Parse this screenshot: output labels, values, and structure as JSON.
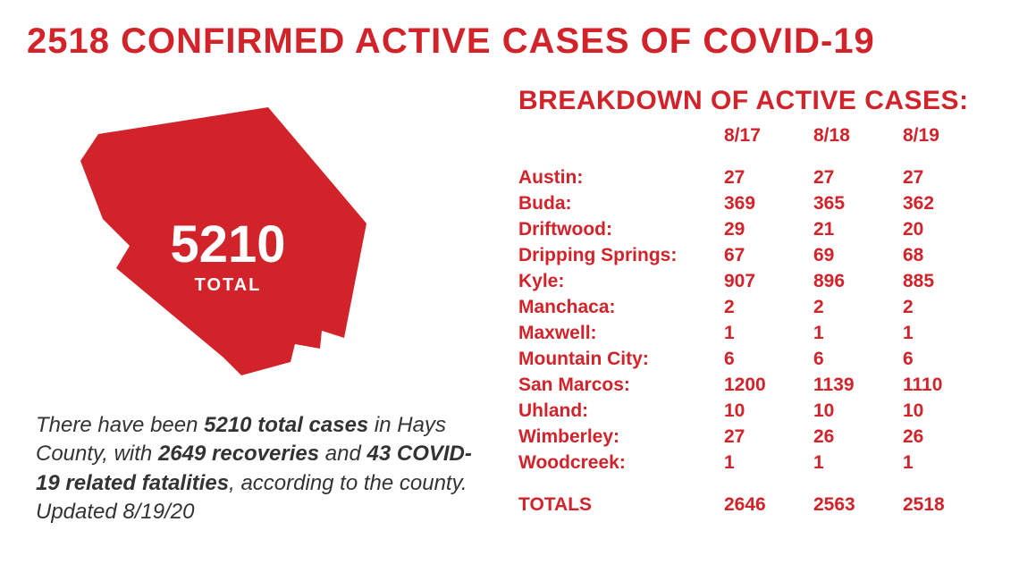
{
  "colors": {
    "red": "#d2232a",
    "text": "#333333",
    "bg": "#ffffff"
  },
  "headline": "2518 CONFIRMED ACTIVE CASES OF COVID-19",
  "map": {
    "number": "5210",
    "label": "TOTAL"
  },
  "summary": {
    "prefix": "There have been ",
    "b1": "5210 total cases",
    "mid1": " in Hays County, with ",
    "b2": "2649 recoveries",
    "mid2": " and ",
    "b3": "43 COVID-19 related fatalities",
    "suffix": ", according to the county. Updated 8/19/20"
  },
  "breakdown_title": "BREAKDOWN OF ACTIVE CASES:",
  "dates": [
    "8/17",
    "8/18",
    "8/19"
  ],
  "cities": [
    {
      "name": "Austin:",
      "v": [
        "27",
        "27",
        "27"
      ]
    },
    {
      "name": "Buda:",
      "v": [
        "369",
        "365",
        "362"
      ]
    },
    {
      "name": "Driftwood:",
      "v": [
        "29",
        "21",
        "20"
      ]
    },
    {
      "name": "Dripping Springs:",
      "v": [
        "67",
        "69",
        "68"
      ]
    },
    {
      "name": "Kyle:",
      "v": [
        "907",
        "896",
        "885"
      ]
    },
    {
      "name": "Manchaca:",
      "v": [
        "2",
        "2",
        "2"
      ]
    },
    {
      "name": "Maxwell:",
      "v": [
        "1",
        "1",
        "1"
      ]
    },
    {
      "name": "Mountain City:",
      "v": [
        "6",
        "6",
        "6"
      ]
    },
    {
      "name": "San Marcos:",
      "v": [
        "1200",
        "1139",
        "1110"
      ]
    },
    {
      "name": "Uhland:",
      "v": [
        "10",
        "10",
        "10"
      ]
    },
    {
      "name": "Wimberley:",
      "v": [
        "27",
        "26",
        "26"
      ]
    },
    {
      "name": "Woodcreek:",
      "v": [
        "1",
        "1",
        "1"
      ]
    }
  ],
  "totals": {
    "label": "TOTALS",
    "v": [
      "2646",
      "2563",
      "2518"
    ]
  }
}
